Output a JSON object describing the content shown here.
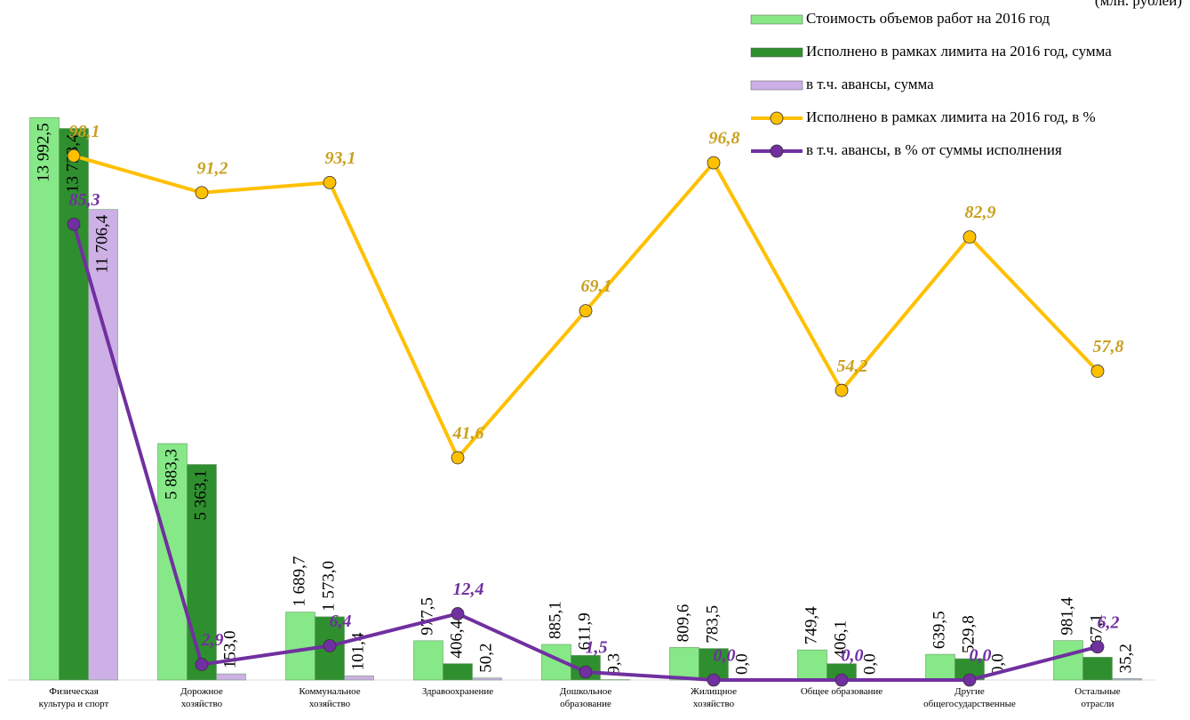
{
  "chart_data": {
    "type": "bar",
    "unit": "(млн. рублей)",
    "categories": [
      "Физическая\nкультура и спорт",
      "Дорожное\nхозяйство",
      "Коммунальное\nхозяйство",
      "Здравоохранение",
      "Дошкольное\nобразование",
      "Жилищное\nхозяйство",
      "Общее образование",
      "Другие\nобщегосударственные",
      "Остальные\nотрасли"
    ],
    "ylim": [
      0,
      14000
    ],
    "y2lim": [
      0,
      105.3
    ],
    "series": [
      {
        "name": "Стоимость объемов работ на 2016 год",
        "type": "bar",
        "color": "#86e886",
        "values": [
          13992.5,
          5883.3,
          1689.7,
          977.5,
          885.1,
          809.6,
          749.4,
          639.5,
          981.4
        ],
        "value_labels": [
          "13 992,5",
          "5 883,3",
          "1 689,7",
          "977,5",
          "885,1",
          "809,6",
          "749,4",
          "639,5",
          "981,4"
        ]
      },
      {
        "name": "Исполнено в рамках лимита на 2016 год, сумма",
        "type": "bar",
        "color": "#2f8f2f",
        "values": [
          13723.4,
          5363.1,
          1573.0,
          406.4,
          611.9,
          783.5,
          406.1,
          529.8,
          567.1
        ],
        "value_labels": [
          "13 723,4",
          "5 363,1",
          "1 573,0",
          "406,4",
          "611,9",
          "783,5",
          "406,1",
          "529,8",
          "567,1"
        ]
      },
      {
        "name": "в т.ч. авансы, сумма",
        "type": "bar",
        "color": "#cdb0e6",
        "values": [
          11706.4,
          153.0,
          101.4,
          50.2,
          9.3,
          0.0,
          0.0,
          0.0,
          35.2
        ],
        "value_labels": [
          "11 706,4",
          "153,0",
          "101,4",
          "50,2",
          "9,3",
          "0,0",
          "0,0",
          "0,0",
          "35,2"
        ]
      },
      {
        "name": "Исполнено в рамках лимита на 2016 год, в %",
        "type": "line",
        "axis": "y2",
        "color": "#ffc000",
        "label_color": "#c9a020",
        "values": [
          98.1,
          91.2,
          93.1,
          41.6,
          69.1,
          96.8,
          54.2,
          82.9,
          57.8
        ],
        "value_labels": [
          "98,1",
          "91,2",
          "93,1",
          "41,6",
          "69,1",
          "96,8",
          "54,2",
          "82,9",
          "57,8"
        ]
      },
      {
        "name": "в т.ч. авансы, в % от суммы исполнения",
        "type": "line",
        "axis": "y2",
        "color": "#7030a0",
        "label_color": "#7030a0",
        "values": [
          85.3,
          2.9,
          6.4,
          12.4,
          1.5,
          0.0,
          0.0,
          0.0,
          6.2
        ],
        "value_labels": [
          "85,3",
          "2,9",
          "6,4",
          "12,4",
          "1,5",
          "0,0",
          "0,0",
          "0,0",
          "6,2"
        ]
      }
    ]
  }
}
